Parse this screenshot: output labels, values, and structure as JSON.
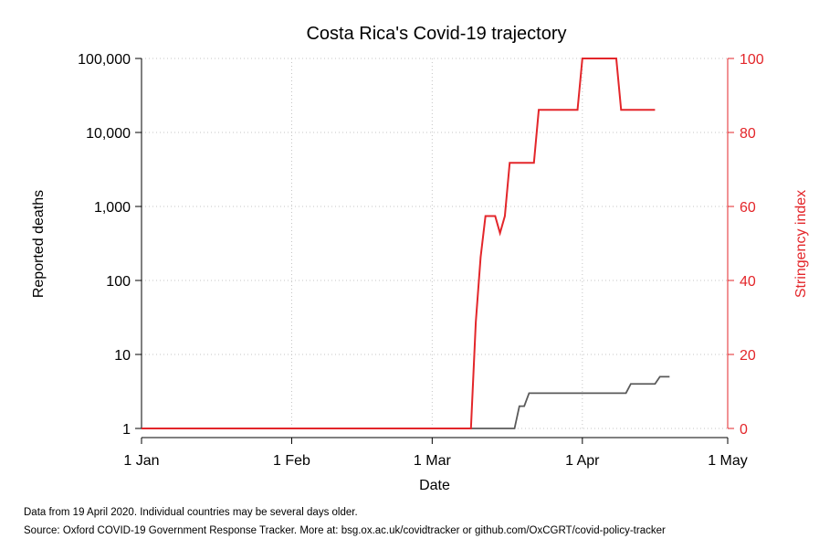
{
  "colors": {
    "deaths": "#5a5a5a",
    "stringency": "#e3262a",
    "grid": "#c4c4c4",
    "axis": "#000000"
  },
  "chart_data": {
    "type": "line",
    "title": "Costa Rica's Covid-19 trajectory",
    "xlabel": "Date",
    "ylabel": "Reported deaths",
    "y2label": "Stringency index",
    "x_ticks": [
      {
        "label": "1 Jan",
        "date": "2020-01-01"
      },
      {
        "label": "1 Feb",
        "date": "2020-02-01"
      },
      {
        "label": "1 Mar",
        "date": "2020-03-01"
      },
      {
        "label": "1 Apr",
        "date": "2020-04-01"
      },
      {
        "label": "1 May",
        "date": "2020-05-01"
      }
    ],
    "xlim": [
      "2020-01-01",
      "2020-05-01"
    ],
    "y_scale": "log",
    "ylim": [
      1,
      100000
    ],
    "y_ticks": [
      {
        "label": "1",
        "value": 1
      },
      {
        "label": "10",
        "value": 10
      },
      {
        "label": "100",
        "value": 100
      },
      {
        "label": "1,000",
        "value": 1000
      },
      {
        "label": "10,000",
        "value": 10000
      },
      {
        "label": "100,000",
        "value": 100000
      }
    ],
    "y2_scale": "linear",
    "y2lim": [
      0,
      100
    ],
    "y2_ticks": [
      {
        "label": "0",
        "value": 0
      },
      {
        "label": "20",
        "value": 20
      },
      {
        "label": "40",
        "value": 40
      },
      {
        "label": "60",
        "value": 60
      },
      {
        "label": "80",
        "value": 80
      },
      {
        "label": "100",
        "value": 100
      }
    ],
    "grid": true,
    "grid_style": "dotted",
    "series": [
      {
        "key": "deaths",
        "axis": "left",
        "points": [
          {
            "x": "2020-01-01",
            "y": 1
          },
          {
            "x": "2020-03-18",
            "y": 1
          },
          {
            "x": "2020-03-19",
            "y": 2
          },
          {
            "x": "2020-03-20",
            "y": 2
          },
          {
            "x": "2020-03-21",
            "y": 3
          },
          {
            "x": "2020-04-10",
            "y": 3
          },
          {
            "x": "2020-04-11",
            "y": 4
          },
          {
            "x": "2020-04-16",
            "y": 4
          },
          {
            "x": "2020-04-17",
            "y": 5
          },
          {
            "x": "2020-04-19",
            "y": 5
          }
        ]
      },
      {
        "key": "stringency",
        "axis": "right",
        "points": [
          {
            "x": "2020-01-01",
            "y": 0
          },
          {
            "x": "2020-03-09",
            "y": 0
          },
          {
            "x": "2020-03-10",
            "y": 28.7
          },
          {
            "x": "2020-03-11",
            "y": 46.3
          },
          {
            "x": "2020-03-12",
            "y": 57.4
          },
          {
            "x": "2020-03-14",
            "y": 57.4
          },
          {
            "x": "2020-03-15",
            "y": 52.8
          },
          {
            "x": "2020-03-16",
            "y": 57.4
          },
          {
            "x": "2020-03-17",
            "y": 71.8
          },
          {
            "x": "2020-03-22",
            "y": 71.8
          },
          {
            "x": "2020-03-23",
            "y": 86.1
          },
          {
            "x": "2020-03-31",
            "y": 86.1
          },
          {
            "x": "2020-04-01",
            "y": 100
          },
          {
            "x": "2020-04-08",
            "y": 100
          },
          {
            "x": "2020-04-09",
            "y": 86.1
          },
          {
            "x": "2020-04-16",
            "y": 86.1
          }
        ]
      }
    ]
  },
  "notes": {
    "line1": "Data from 19 April 2020. Individual countries may be several days older.",
    "line2": "Source: Oxford COVID-19 Government Response Tracker. More at: bsg.ox.ac.uk/covidtracker or github.com/OxCGRT/covid-policy-tracker"
  }
}
